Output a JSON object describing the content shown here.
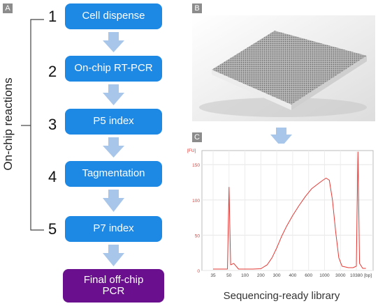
{
  "panels": {
    "a": "A",
    "b": "B",
    "c": "C"
  },
  "side_label": "On-chip reactions",
  "steps": [
    {
      "num": "1",
      "label": "Cell dispense"
    },
    {
      "num": "2",
      "label": "On-chip RT-PCR"
    },
    {
      "num": "3",
      "label": "P5 index"
    },
    {
      "num": "4",
      "label": "Tagmentation"
    },
    {
      "num": "5",
      "label": "P7 index"
    }
  ],
  "final_step": {
    "line1": "Final off-chip",
    "line2": "PCR"
  },
  "caption": "Sequencing-ready library",
  "colors": {
    "step": "#1e88e5",
    "final": "#6a0f8e",
    "arrow": "#a7c6ea",
    "trace": "#e53935"
  },
  "chart_data": {
    "type": "line",
    "ylabel": "[FU]",
    "xlabel": "[bp]",
    "yticks": [
      "0",
      "50",
      "100",
      "150"
    ],
    "xticks": [
      "35",
      "50",
      "100",
      "200",
      "300",
      "400",
      "600",
      "1000",
      "3000",
      "10380"
    ],
    "ylim": [
      0,
      170
    ],
    "series": [
      {
        "points": [
          [
            0,
            2
          ],
          [
            0.9,
            2
          ],
          [
            1,
            118
          ],
          [
            1.1,
            8
          ],
          [
            1.3,
            10
          ],
          [
            1.6,
            2
          ],
          [
            2,
            2
          ],
          [
            2.5,
            2
          ],
          [
            3,
            2.5
          ],
          [
            3.4,
            8
          ],
          [
            3.7,
            18
          ],
          [
            4,
            32
          ],
          [
            4.3,
            48
          ],
          [
            4.6,
            62
          ],
          [
            5,
            78
          ],
          [
            5.4,
            92
          ],
          [
            5.8,
            105
          ],
          [
            6.2,
            116
          ],
          [
            6.6,
            123
          ],
          [
            6.9,
            128
          ],
          [
            7.1,
            131
          ],
          [
            7.3,
            128
          ],
          [
            7.5,
            100
          ],
          [
            7.7,
            55
          ],
          [
            7.9,
            18
          ],
          [
            8.1,
            6
          ],
          [
            8.5,
            4
          ],
          [
            8.8,
            4
          ],
          [
            9.0,
            6
          ],
          [
            9.1,
            168
          ],
          [
            9.2,
            10
          ],
          [
            9.4,
            3
          ],
          [
            9.6,
            3
          ]
        ]
      }
    ]
  }
}
